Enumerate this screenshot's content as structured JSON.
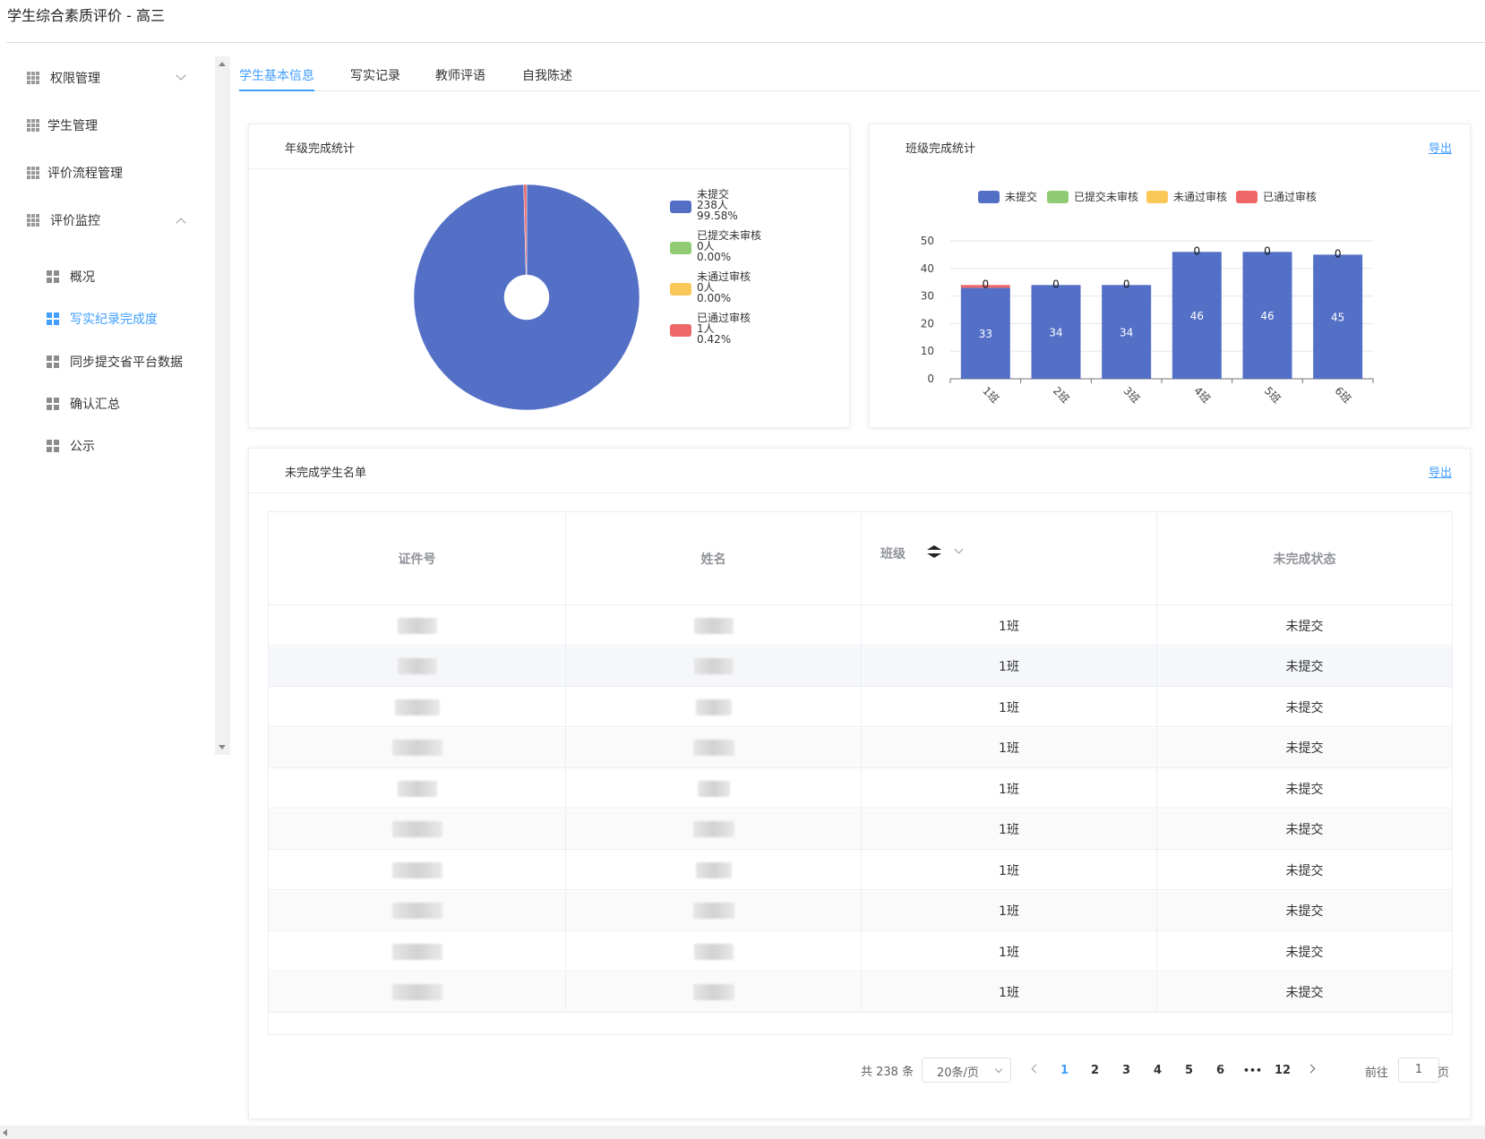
{
  "app": {
    "title": "学生综合素质评价 - 高三"
  },
  "sidebar": {
    "items": [
      {
        "label": "权限管理",
        "icon": "grid-icon",
        "expanded": false
      },
      {
        "label": "学生管理",
        "icon": "grid-icon"
      },
      {
        "label": "评价流程管理",
        "icon": "grid-icon"
      },
      {
        "label": "评价监控",
        "icon": "grid-icon",
        "expanded": true
      }
    ],
    "subitems": [
      {
        "label": "概况"
      },
      {
        "label": "写实纪录完成度",
        "active": true
      },
      {
        "label": "同步提交省平台数据"
      },
      {
        "label": "确认汇总"
      },
      {
        "label": "公示"
      }
    ]
  },
  "tabs": [
    {
      "label": "学生基本信息",
      "active": true
    },
    {
      "label": "写实记录"
    },
    {
      "label": "教师评语"
    },
    {
      "label": "自我陈述"
    }
  ],
  "grade_card": {
    "title": "年级完成统计",
    "legend": [
      {
        "name": "未提交",
        "count": "238人",
        "pct": "99.58%",
        "color": "#5470c6"
      },
      {
        "name": "已提交未审核",
        "count": "0人",
        "pct": "0.00%",
        "color": "#91cc75"
      },
      {
        "name": "未通过审核",
        "count": "0人",
        "pct": "0.00%",
        "color": "#fac858"
      },
      {
        "name": "已通过审核",
        "count": "1人",
        "pct": "0.42%",
        "color": "#ee6666"
      }
    ]
  },
  "class_card": {
    "title": "班级完成统计",
    "export_label": "导出",
    "legend": [
      {
        "name": "未提交",
        "color": "#5470c6"
      },
      {
        "name": "已提交未审核",
        "color": "#91cc75"
      },
      {
        "name": "未通过审核",
        "color": "#fac858"
      },
      {
        "name": "已通过审核",
        "color": "#ee6666"
      }
    ]
  },
  "chart_data": [
    {
      "type": "pie",
      "title": "年级完成统计",
      "labels": [
        "未提交",
        "已提交未审核",
        "未通过审核",
        "已通过审核"
      ],
      "values": [
        238,
        0,
        0,
        1
      ],
      "colors": [
        "#5470c6",
        "#91cc75",
        "#fac858",
        "#ee6666"
      ]
    },
    {
      "type": "bar",
      "stacked": true,
      "title": "班级完成统计",
      "categories": [
        "1班",
        "2班",
        "3班",
        "4班",
        "5班",
        "6班"
      ],
      "series": [
        {
          "name": "未提交",
          "values": [
            33,
            34,
            34,
            46,
            46,
            45
          ],
          "color": "#5470c6"
        },
        {
          "name": "已提交未审核",
          "values": [
            0,
            0,
            0,
            0,
            0,
            0
          ],
          "color": "#91cc75"
        },
        {
          "name": "未通过审核",
          "values": [
            0,
            0,
            0,
            0,
            0,
            0
          ],
          "color": "#fac858"
        },
        {
          "name": "已通过审核",
          "values": [
            1,
            0,
            0,
            0,
            0,
            0
          ],
          "color": "#ee6666"
        }
      ],
      "top_labels": [
        "0",
        "0",
        "0",
        "0",
        "0",
        "0"
      ],
      "ylim": [
        0,
        50
      ],
      "yticks": [
        "0",
        "10",
        "20",
        "30",
        "40",
        "50"
      ],
      "grid": true,
      "legend": "top"
    }
  ],
  "unfinished_card": {
    "title": "未完成学生名单",
    "export_label": "导出",
    "columns": [
      "证件号",
      "姓名",
      "班级",
      "未完成状态"
    ],
    "rows": [
      {
        "class": "1班",
        "status": "未提交"
      },
      {
        "class": "1班",
        "status": "未提交"
      },
      {
        "class": "1班",
        "status": "未提交"
      },
      {
        "class": "1班",
        "status": "未提交"
      },
      {
        "class": "1班",
        "status": "未提交"
      },
      {
        "class": "1班",
        "status": "未提交"
      },
      {
        "class": "1班",
        "status": "未提交"
      },
      {
        "class": "1班",
        "status": "未提交"
      },
      {
        "class": "1班",
        "status": "未提交"
      },
      {
        "class": "1班",
        "status": "未提交"
      }
    ]
  },
  "pagination": {
    "total_text": "共 238 条",
    "page_size": "20条/页",
    "pages": [
      "1",
      "2",
      "3",
      "4",
      "5",
      "6",
      "•••",
      "12"
    ],
    "current": "1",
    "goto_prefix": "前往",
    "goto_value": "1",
    "goto_suffix": "页"
  }
}
